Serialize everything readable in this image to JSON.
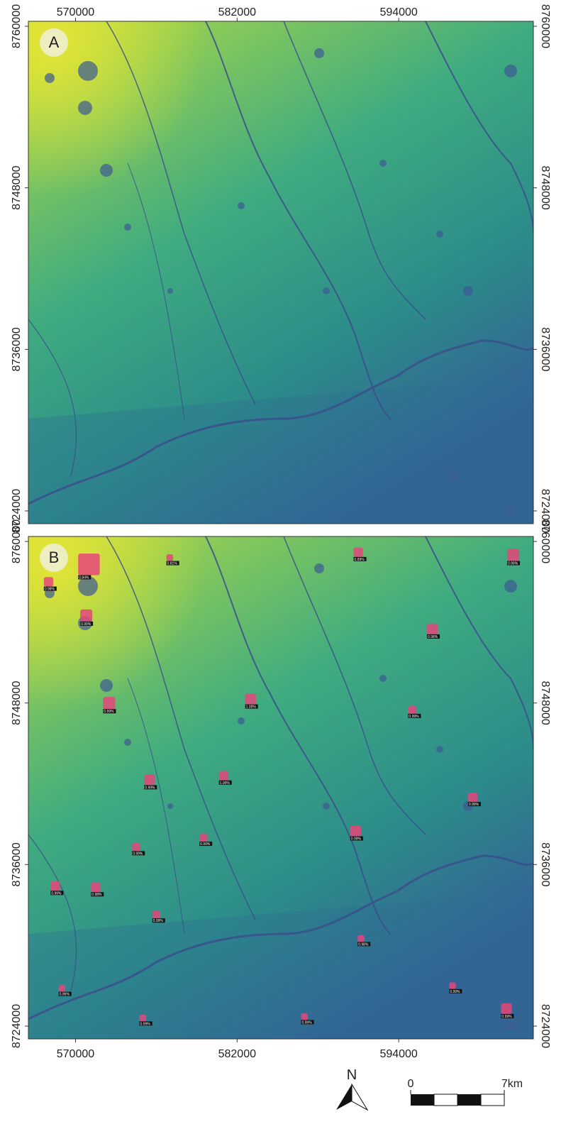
{
  "xlim": [
    566500,
    604000
  ],
  "ylim": [
    8723050,
    8760370
  ],
  "xticks": [
    570000,
    582000,
    594000
  ],
  "yticks": [
    8724000,
    8736000,
    8748000,
    8760000
  ],
  "detection_color": "#e6457a",
  "panels": [
    {
      "label": "A"
    },
    {
      "label": "B",
      "detections": [
        {
          "x": 571000,
          "y": 8758300,
          "label": "0.84%",
          "size": 1600
        },
        {
          "x": 570800,
          "y": 8754500,
          "label": "0.99%",
          "size": 900
        },
        {
          "x": 568000,
          "y": 8757000,
          "label": "0.98%",
          "size": 700
        },
        {
          "x": 572500,
          "y": 8748000,
          "label": "0.99%",
          "size": 900
        },
        {
          "x": 577000,
          "y": 8758800,
          "label": "0.81%",
          "size": 500
        },
        {
          "x": 575500,
          "y": 8742300,
          "label": "0.99%",
          "size": 800
        },
        {
          "x": 583000,
          "y": 8748300,
          "label": "1.00%",
          "size": 800
        },
        {
          "x": 581000,
          "y": 8742600,
          "label": "1.00%",
          "size": 700
        },
        {
          "x": 591000,
          "y": 8759200,
          "label": "0.99%",
          "size": 700
        },
        {
          "x": 596500,
          "y": 8753500,
          "label": "0.98%",
          "size": 800
        },
        {
          "x": 602500,
          "y": 8759000,
          "label": "0.99%",
          "size": 900
        },
        {
          "x": 595000,
          "y": 8747500,
          "label": "0.99%",
          "size": 600
        },
        {
          "x": 590800,
          "y": 8738500,
          "label": "0.99%",
          "size": 800
        },
        {
          "x": 599500,
          "y": 8741000,
          "label": "0.99%",
          "size": 700
        },
        {
          "x": 574500,
          "y": 8737300,
          "label": "0.99%",
          "size": 600
        },
        {
          "x": 571500,
          "y": 8734300,
          "label": "0.98%",
          "size": 700
        },
        {
          "x": 568500,
          "y": 8734400,
          "label": "0.99%",
          "size": 700
        },
        {
          "x": 576000,
          "y": 8732300,
          "label": "0.99%",
          "size": 600
        },
        {
          "x": 579500,
          "y": 8738000,
          "label": "0.99%",
          "size": 600
        },
        {
          "x": 591200,
          "y": 8730500,
          "label": "0.98%",
          "size": 500
        },
        {
          "x": 598000,
          "y": 8727000,
          "label": "0.99%",
          "size": 500
        },
        {
          "x": 602000,
          "y": 8725300,
          "label": "0.99%",
          "size": 800
        },
        {
          "x": 587000,
          "y": 8724700,
          "label": "0.99%",
          "size": 500
        },
        {
          "x": 575000,
          "y": 8724600,
          "label": "0.99%",
          "size": 500
        },
        {
          "x": 569000,
          "y": 8726800,
          "label": "0.96%",
          "size": 500
        }
      ]
    }
  ],
  "north_label": "N",
  "scale_bar": {
    "labels": [
      "0",
      "7km"
    ]
  }
}
